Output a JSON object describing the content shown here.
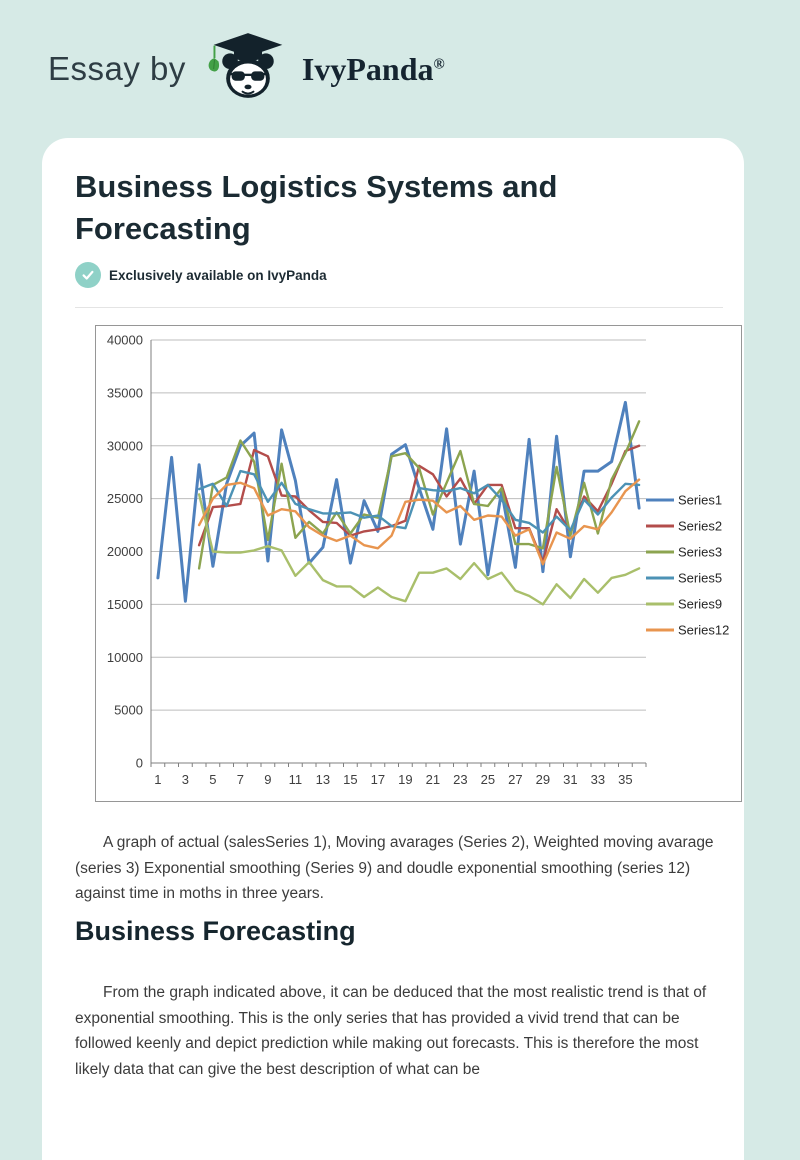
{
  "page": {
    "background_color": "#d6eae6",
    "card_color": "#ffffff"
  },
  "header": {
    "prefix": "Essay by",
    "brand": "IvyPanda",
    "registered": "®",
    "logo_icon": "panda-graduate-logo",
    "accent_green": "#43a047",
    "logo_ink": "#13222b"
  },
  "article": {
    "title": "Business Logistics Systems and Forecasting",
    "badge": {
      "icon": "check-icon",
      "color": "#8fd1c7",
      "text": "Exclusively available on IvyPanda"
    },
    "caption": "A graph of actual (salesSeries 1), Moving avarages (Series 2), Weighted moving avarage (series 3) Exponential smoothing (Series 9) and doudle exponential smoothing (series 12) against time in moths in three years.",
    "section_heading": "Business Forecasting",
    "body_paragraph": "From the graph indicated above, it can be deduced that the most realistic trend is that of exponential smoothing. This is the only series that has provided a vivid trend that can be followed keenly and depict prediction while making out forecasts. This is therefore the most likely data that can give the best description of what can be"
  },
  "chart_data": {
    "type": "line",
    "title": "",
    "xlabel": "",
    "ylabel": "",
    "x": [
      1,
      2,
      3,
      4,
      5,
      6,
      7,
      8,
      9,
      10,
      11,
      12,
      13,
      14,
      15,
      16,
      17,
      18,
      19,
      20,
      21,
      22,
      23,
      24,
      25,
      26,
      27,
      28,
      29,
      30,
      31,
      32,
      33,
      34,
      35,
      36
    ],
    "x_tick_labels": [
      "1",
      "3",
      "5",
      "7",
      "9",
      "11",
      "13",
      "15",
      "17",
      "19",
      "21",
      "23",
      "25",
      "27",
      "29",
      "31",
      "33",
      "35"
    ],
    "ylim": [
      0,
      40000
    ],
    "y_ticks": [
      0,
      5000,
      10000,
      15000,
      20000,
      25000,
      30000,
      35000,
      40000
    ],
    "grid": true,
    "legend_position": "right",
    "colors": {
      "gridline": "#bdbdbd",
      "axis": "#7f7f7f",
      "tick_text": "#3f3f3f",
      "legend_text": "#262626"
    },
    "series": [
      {
        "name": "Series1",
        "color": "#4F81BD",
        "values": [
          17500,
          28900,
          15300,
          28200,
          18600,
          26400,
          30000,
          31200,
          19100,
          31500,
          26700,
          18900,
          20400,
          26800,
          18900,
          24800,
          21900,
          29200,
          30100,
          26000,
          22100,
          31600,
          20700,
          27600,
          17800,
          25700,
          18500,
          30600,
          18100,
          30900,
          19500,
          27600,
          27600,
          28500,
          34100,
          24100
        ]
      },
      {
        "name": "Series2",
        "color": "#B34D4B",
        "values": [
          null,
          null,
          null,
          20600,
          24200,
          24300,
          24500,
          29600,
          29000,
          25300,
          25200,
          23900,
          22800,
          22700,
          21500,
          21900,
          22100,
          22400,
          22900,
          28100,
          27300,
          25200,
          26900,
          24500,
          26300,
          26300,
          22200,
          22200,
          19000,
          24000,
          21800,
          25200,
          23800,
          26400,
          29500,
          30000
        ]
      },
      {
        "name": "Series3",
        "color": "#8CA450",
        "values": [
          null,
          null,
          null,
          18400,
          26300,
          27000,
          30500,
          28500,
          21100,
          28300,
          21300,
          22800,
          21700,
          23700,
          21700,
          23500,
          23200,
          29000,
          29300,
          27900,
          23500,
          26500,
          29500,
          24500,
          24300,
          26000,
          20700,
          20700,
          20300,
          28000,
          21500,
          26500,
          21700,
          26800,
          29300,
          32300
        ]
      },
      {
        "name": "Series5",
        "color": "#4C92B5",
        "values": [
          null,
          null,
          null,
          25900,
          26400,
          24300,
          27600,
          27300,
          24700,
          26500,
          24500,
          24000,
          23600,
          23600,
          23700,
          23200,
          23400,
          22400,
          22200,
          26000,
          25800,
          25700,
          26000,
          25500,
          26300,
          24900,
          23000,
          22700,
          21800,
          23300,
          22000,
          24900,
          23500,
          25100,
          26400,
          26300
        ]
      },
      {
        "name": "Series9",
        "color": "#A9BF6B",
        "values": [
          null,
          null,
          null,
          25400,
          20000,
          19900,
          19900,
          20100,
          20500,
          20100,
          17700,
          19000,
          17300,
          16700,
          16700,
          15700,
          16600,
          15700,
          15300,
          18000,
          18000,
          18400,
          17400,
          18900,
          17400,
          18000,
          16300,
          15800,
          15000,
          16900,
          15600,
          17400,
          16100,
          17500,
          17800,
          18400
        ]
      },
      {
        "name": "Series12",
        "color": "#E8954F",
        "values": [
          null,
          null,
          null,
          22500,
          25000,
          26300,
          26500,
          26000,
          23400,
          24000,
          23800,
          22300,
          21500,
          21000,
          21500,
          20600,
          20300,
          21500,
          24700,
          24900,
          24800,
          23700,
          24300,
          23000,
          23400,
          23300,
          21500,
          22100,
          18800,
          21800,
          21200,
          22400,
          22100,
          23700,
          25700,
          26800
        ]
      }
    ]
  }
}
